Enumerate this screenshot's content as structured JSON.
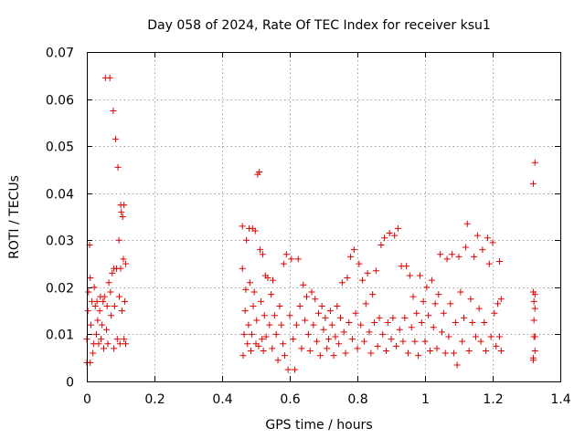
{
  "chart_data": {
    "type": "scatter",
    "title": "Day 058 of 2024, Rate Of TEC Index for receiver ksu1",
    "xlabel": "GPS time / hours",
    "ylabel": "ROTI / TECUs",
    "xlim": [
      0,
      1.4
    ],
    "ylim": [
      0,
      0.07
    ],
    "xticks": [
      0,
      0.2,
      0.4,
      0.6,
      0.8,
      1,
      1.2,
      1.4
    ],
    "xtick_labels": [
      "0",
      "0.2",
      "0.4",
      "0.6",
      "0.8",
      "1",
      "1.2",
      "1.4"
    ],
    "yticks": [
      0,
      0.01,
      0.02,
      0.03,
      0.04,
      0.05,
      0.06,
      0.07
    ],
    "ytick_labels": [
      "0",
      "0.01",
      "0.02",
      "0.03",
      "0.04",
      "0.05",
      "0.06",
      "0.07"
    ],
    "grid": true,
    "marker": "plus",
    "color": "#e00000",
    "series": [
      {
        "points": [
          [
            0.0,
            0.004
          ],
          [
            0.0,
            0.009
          ],
          [
            0.003,
            0.015
          ],
          [
            0.005,
            0.019
          ],
          [
            0.008,
            0.029
          ],
          [
            0.01,
            0.022
          ],
          [
            0.01,
            0.004
          ],
          [
            0.012,
            0.012
          ],
          [
            0.015,
            0.017
          ],
          [
            0.018,
            0.006
          ],
          [
            0.02,
            0.008
          ],
          [
            0.022,
            0.02
          ],
          [
            0.025,
            0.016
          ],
          [
            0.028,
            0.01
          ],
          [
            0.03,
            0.017
          ],
          [
            0.032,
            0.013
          ],
          [
            0.035,
            0.008
          ],
          [
            0.038,
            0.015
          ],
          [
            0.04,
            0.018
          ],
          [
            0.042,
            0.009
          ],
          [
            0.045,
            0.012
          ],
          [
            0.048,
            0.017
          ],
          [
            0.05,
            0.007
          ],
          [
            0.052,
            0.018
          ],
          [
            0.055,
            0.0645
          ],
          [
            0.058,
            0.011
          ],
          [
            0.06,
            0.016
          ],
          [
            0.062,
            0.008
          ],
          [
            0.065,
            0.021
          ],
          [
            0.068,
            0.0645
          ],
          [
            0.07,
            0.019
          ],
          [
            0.072,
            0.014
          ],
          [
            0.075,
            0.023
          ],
          [
            0.078,
            0.0575
          ],
          [
            0.08,
            0.024
          ],
          [
            0.08,
            0.007
          ],
          [
            0.082,
            0.016
          ],
          [
            0.085,
            0.0515
          ],
          [
            0.088,
            0.024
          ],
          [
            0.09,
            0.009
          ],
          [
            0.092,
            0.0455
          ],
          [
            0.095,
            0.03
          ],
          [
            0.096,
            0.018
          ],
          [
            0.098,
            0.008
          ],
          [
            0.1,
            0.0375
          ],
          [
            0.1,
            0.024
          ],
          [
            0.102,
            0.036
          ],
          [
            0.104,
            0.015
          ],
          [
            0.106,
            0.035
          ],
          [
            0.108,
            0.026
          ],
          [
            0.11,
            0.0375
          ],
          [
            0.11,
            0.009
          ],
          [
            0.112,
            0.017
          ],
          [
            0.115,
            0.025
          ],
          [
            0.115,
            0.008
          ]
        ]
      },
      {
        "points": [
          [
            0.46,
            0.033
          ],
          [
            0.46,
            0.024
          ],
          [
            0.462,
            0.0055
          ],
          [
            0.465,
            0.01
          ],
          [
            0.468,
            0.015
          ],
          [
            0.47,
            0.0195
          ],
          [
            0.472,
            0.03
          ],
          [
            0.475,
            0.008
          ],
          [
            0.478,
            0.012
          ],
          [
            0.48,
            0.0325
          ],
          [
            0.482,
            0.021
          ],
          [
            0.485,
            0.0065
          ],
          [
            0.488,
            0.01
          ],
          [
            0.49,
            0.0325
          ],
          [
            0.492,
            0.016
          ],
          [
            0.495,
            0.019
          ],
          [
            0.498,
            0.032
          ],
          [
            0.5,
            0.008
          ],
          [
            0.502,
            0.013
          ],
          [
            0.505,
            0.044
          ],
          [
            0.508,
            0.0075
          ],
          [
            0.51,
            0.0445
          ],
          [
            0.512,
            0.028
          ],
          [
            0.515,
            0.017
          ],
          [
            0.518,
            0.009
          ],
          [
            0.52,
            0.027
          ],
          [
            0.522,
            0.0065
          ],
          [
            0.525,
            0.014
          ],
          [
            0.528,
            0.0225
          ],
          [
            0.53,
            0.0095
          ],
          [
            0.535,
            0.022
          ],
          [
            0.54,
            0.012
          ],
          [
            0.545,
            0.0185
          ],
          [
            0.548,
            0.007
          ],
          [
            0.55,
            0.0215
          ],
          [
            0.555,
            0.014
          ],
          [
            0.56,
            0.01
          ],
          [
            0.565,
            0.0045
          ],
          [
            0.57,
            0.016
          ],
          [
            0.575,
            0.012
          ],
          [
            0.58,
            0.008
          ],
          [
            0.582,
            0.025
          ],
          [
            0.585,
            0.0055
          ],
          [
            0.59,
            0.027
          ],
          [
            0.595,
            0.0025
          ],
          [
            0.6,
            0.014
          ],
          [
            0.605,
            0.026
          ],
          [
            0.61,
            0.009
          ],
          [
            0.615,
            0.0025
          ],
          [
            0.62,
            0.012
          ],
          [
            0.625,
            0.026
          ],
          [
            0.63,
            0.016
          ],
          [
            0.635,
            0.007
          ],
          [
            0.64,
            0.0205
          ],
          [
            0.645,
            0.013
          ],
          [
            0.65,
            0.018
          ],
          [
            0.655,
            0.01
          ],
          [
            0.66,
            0.0065
          ],
          [
            0.665,
            0.019
          ],
          [
            0.67,
            0.012
          ],
          [
            0.675,
            0.0175
          ],
          [
            0.68,
            0.0085
          ],
          [
            0.685,
            0.0145
          ],
          [
            0.69,
            0.0055
          ],
          [
            0.695,
            0.016
          ],
          [
            0.7,
            0.011
          ],
          [
            0.705,
            0.0135
          ],
          [
            0.71,
            0.007
          ],
          [
            0.715,
            0.009
          ],
          [
            0.72,
            0.015
          ],
          [
            0.725,
            0.012
          ],
          [
            0.73,
            0.0055
          ],
          [
            0.735,
            0.0095
          ],
          [
            0.74,
            0.016
          ],
          [
            0.745,
            0.008
          ],
          [
            0.75,
            0.0135
          ],
          [
            0.755,
            0.021
          ],
          [
            0.76,
            0.0105
          ],
          [
            0.765,
            0.006
          ],
          [
            0.77,
            0.022
          ],
          [
            0.775,
            0.0125
          ],
          [
            0.78,
            0.0265
          ],
          [
            0.785,
            0.009
          ],
          [
            0.79,
            0.028
          ],
          [
            0.795,
            0.0145
          ],
          [
            0.8,
            0.007
          ],
          [
            0.805,
            0.025
          ],
          [
            0.81,
            0.012
          ],
          [
            0.815,
            0.0215
          ],
          [
            0.82,
            0.0085
          ],
          [
            0.825,
            0.0165
          ],
          [
            0.83,
            0.023
          ],
          [
            0.835,
            0.0105
          ],
          [
            0.84,
            0.006
          ],
          [
            0.845,
            0.0185
          ],
          [
            0.85,
            0.0125
          ],
          [
            0.855,
            0.0235
          ],
          [
            0.86,
            0.0075
          ],
          [
            0.865,
            0.0135
          ],
          [
            0.87,
            0.029
          ],
          [
            0.875,
            0.01
          ],
          [
            0.88,
            0.0305
          ],
          [
            0.885,
            0.0065
          ],
          [
            0.89,
            0.0125
          ],
          [
            0.895,
            0.0315
          ],
          [
            0.9,
            0.009
          ],
          [
            0.905,
            0.0135
          ],
          [
            0.91,
            0.031
          ],
          [
            0.915,
            0.0075
          ],
          [
            0.92,
            0.0325
          ],
          [
            0.925,
            0.011
          ],
          [
            0.93,
            0.0245
          ],
          [
            0.935,
            0.0085
          ],
          [
            0.94,
            0.0135
          ],
          [
            0.945,
            0.0245
          ],
          [
            0.95,
            0.006
          ],
          [
            0.955,
            0.0225
          ],
          [
            0.96,
            0.0115
          ],
          [
            0.965,
            0.018
          ],
          [
            0.97,
            0.0085
          ],
          [
            0.975,
            0.0145
          ],
          [
            0.98,
            0.0055
          ],
          [
            0.985,
            0.0225
          ],
          [
            0.99,
            0.0125
          ],
          [
            0.995,
            0.017
          ],
          [
            1.0,
            0.0085
          ],
          [
            1.005,
            0.02
          ],
          [
            1.01,
            0.014
          ],
          [
            1.015,
            0.0065
          ],
          [
            1.02,
            0.0215
          ],
          [
            1.025,
            0.0115
          ],
          [
            1.03,
            0.0165
          ],
          [
            1.035,
            0.007
          ],
          [
            1.04,
            0.0185
          ],
          [
            1.045,
            0.027
          ],
          [
            1.05,
            0.0105
          ],
          [
            1.055,
            0.0145
          ],
          [
            1.06,
            0.006
          ],
          [
            1.065,
            0.026
          ],
          [
            1.07,
            0.0095
          ],
          [
            1.075,
            0.0165
          ],
          [
            1.08,
            0.027
          ],
          [
            1.085,
            0.006
          ],
          [
            1.09,
            0.0125
          ],
          [
            1.095,
            0.0035
          ],
          [
            1.1,
            0.0265
          ],
          [
            1.105,
            0.019
          ],
          [
            1.11,
            0.0085
          ],
          [
            1.115,
            0.0135
          ],
          [
            1.12,
            0.0285
          ],
          [
            1.125,
            0.0335
          ],
          [
            1.13,
            0.0065
          ],
          [
            1.135,
            0.0175
          ],
          [
            1.14,
            0.0125
          ],
          [
            1.145,
            0.0265
          ],
          [
            1.15,
            0.0095
          ],
          [
            1.155,
            0.031
          ],
          [
            1.16,
            0.0155
          ],
          [
            1.165,
            0.0085
          ],
          [
            1.17,
            0.028
          ],
          [
            1.175,
            0.0125
          ],
          [
            1.18,
            0.0065
          ],
          [
            1.185,
            0.0305
          ],
          [
            1.19,
            0.025
          ],
          [
            1.195,
            0.0095
          ],
          [
            1.2,
            0.0295
          ],
          [
            1.205,
            0.0145
          ],
          [
            1.21,
            0.0075
          ],
          [
            1.215,
            0.0165
          ],
          [
            1.22,
            0.0255
          ],
          [
            1.22,
            0.0095
          ],
          [
            1.225,
            0.0175
          ],
          [
            1.225,
            0.0065
          ]
        ]
      },
      {
        "points": [
          [
            1.32,
            0.042
          ],
          [
            1.325,
            0.0465
          ],
          [
            1.32,
            0.019
          ],
          [
            1.322,
            0.017
          ],
          [
            1.325,
            0.0155
          ],
          [
            1.322,
            0.0095
          ],
          [
            1.325,
            0.0065
          ],
          [
            1.32,
            0.0045
          ],
          [
            1.325,
            0.0185
          ],
          [
            1.322,
            0.013
          ],
          [
            1.325,
            0.0095
          ],
          [
            1.32,
            0.005
          ]
        ]
      }
    ]
  }
}
